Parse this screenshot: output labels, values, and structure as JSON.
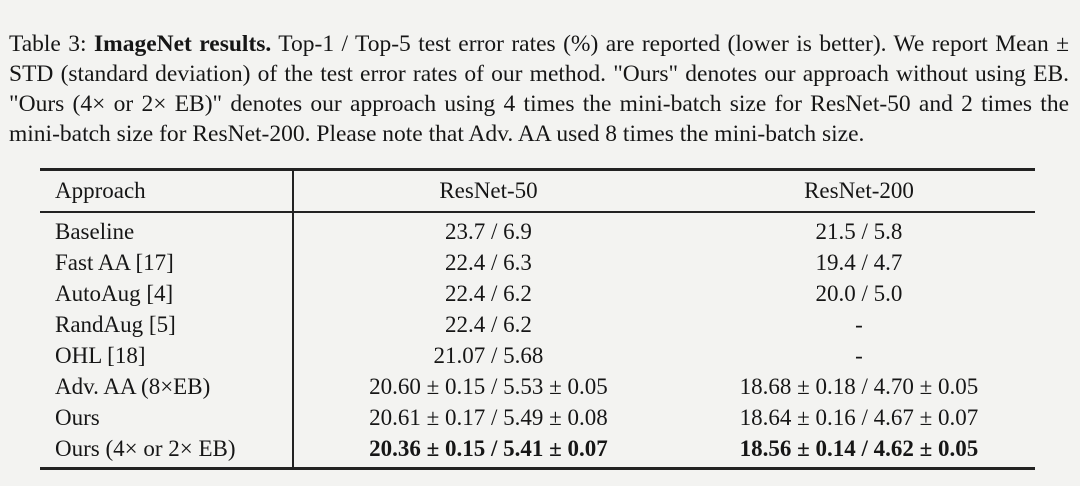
{
  "page": {
    "background_color": "#f3f3f1",
    "text_color": "#161616",
    "rule_color": "#222222"
  },
  "caption": {
    "label": "Table 3:",
    "title": "ImageNet results.",
    "body": "Top-1 / Top-5 test error rates (%) are reported (lower is better). We report Mean ± STD (standard deviation) of the test error rates of our method. \"Ours\" denotes our approach without using EB. \"Ours (4× or 2× EB)\" denotes our approach using 4 times the mini-batch size for ResNet-50 and 2 times the mini-batch size for ResNet-200. Please note that Adv. AA used 8 times the mini-batch size."
  },
  "table": {
    "columns": [
      "Approach",
      "ResNet-50",
      "ResNet-200"
    ],
    "rows": [
      {
        "approach": "Baseline",
        "resnet50": "23.7 / 6.9",
        "resnet200": "21.5 / 5.8",
        "bold": false
      },
      {
        "approach": "Fast AA [17]",
        "resnet50": "22.4 / 6.3",
        "resnet200": "19.4 / 4.7",
        "bold": false
      },
      {
        "approach": "AutoAug [4]",
        "resnet50": "22.4 / 6.2",
        "resnet200": "20.0 / 5.0",
        "bold": false
      },
      {
        "approach": "RandAug [5]",
        "resnet50": "22.4 / 6.2",
        "resnet200": "-",
        "bold": false
      },
      {
        "approach": "OHL [18]",
        "resnet50": "21.07 / 5.68",
        "resnet200": "-",
        "bold": false
      },
      {
        "approach": "Adv. AA (8×EB)",
        "resnet50": "20.60 ± 0.15 / 5.53 ± 0.05",
        "resnet200": "18.68 ± 0.18 / 4.70 ± 0.05",
        "bold": false
      },
      {
        "approach": "Ours",
        "resnet50": "20.61 ± 0.17 / 5.49 ± 0.08",
        "resnet200": "18.64 ± 0.16 / 4.67 ± 0.07",
        "bold": false
      },
      {
        "approach": "Ours (4× or 2× EB)",
        "resnet50": "20.36 ± 0.15 / 5.41 ± 0.07",
        "resnet200": "18.56 ± 0.14 / 4.62 ± 0.05",
        "bold": true
      }
    ]
  }
}
